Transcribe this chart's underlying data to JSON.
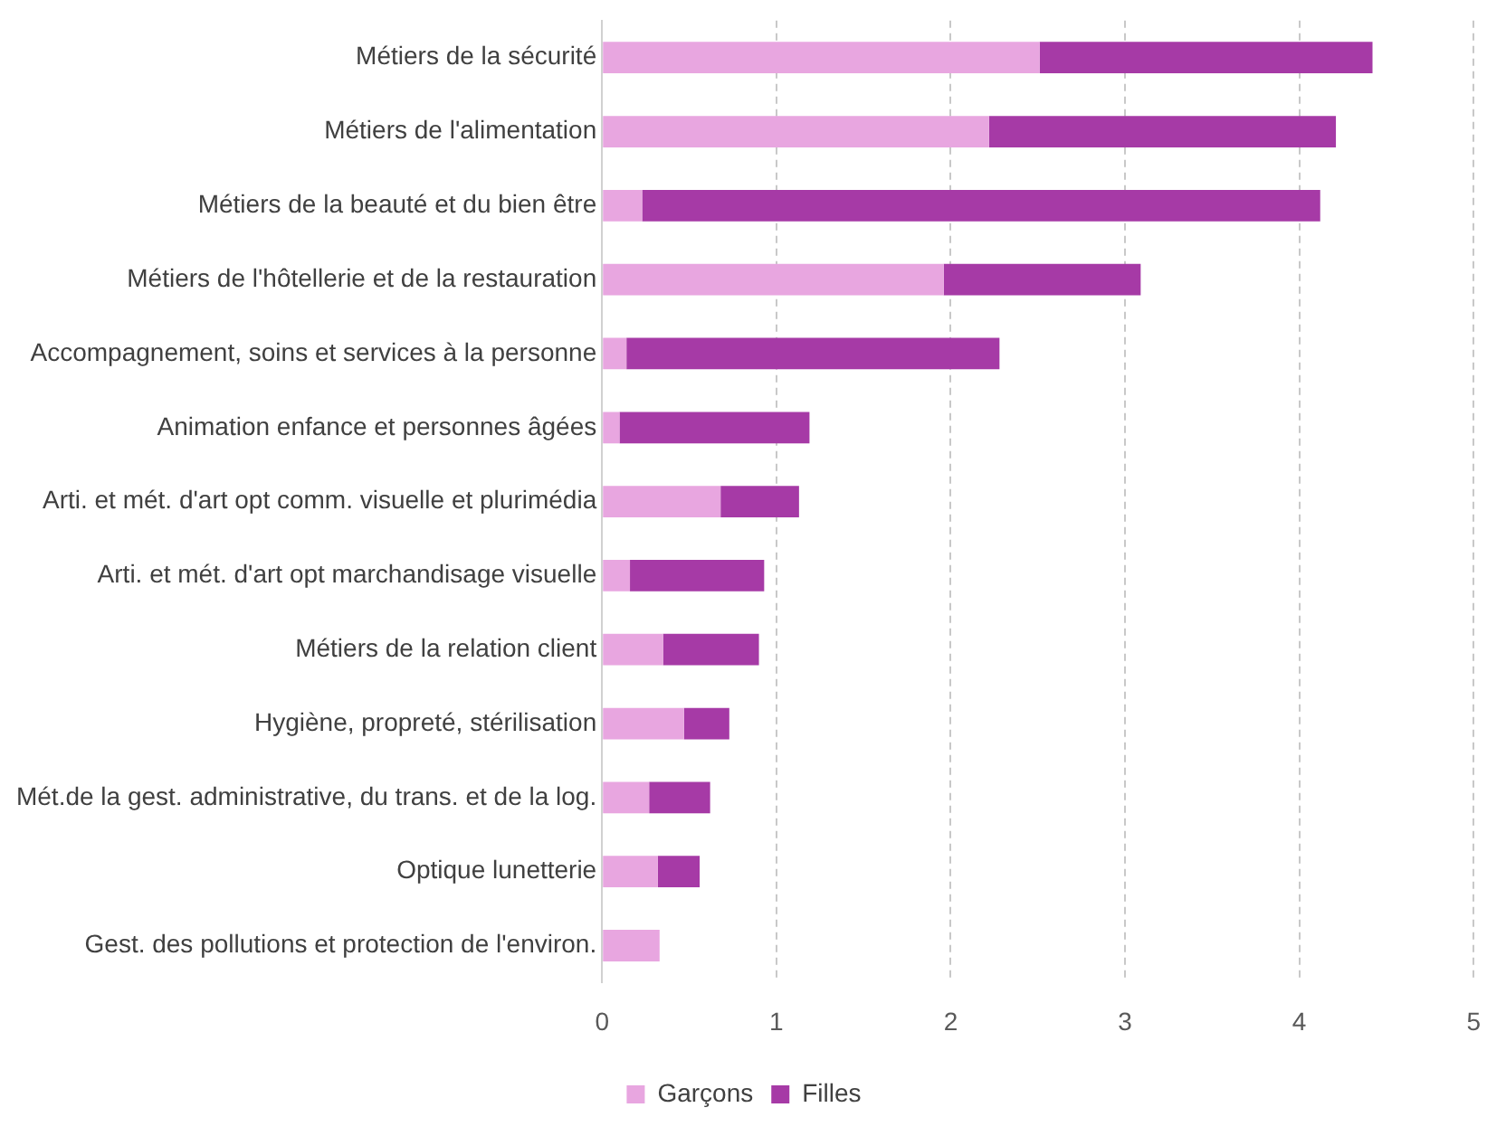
{
  "chart_data": {
    "type": "bar",
    "orientation": "horizontal",
    "stacked": true,
    "categories": [
      "Métiers de la sécurité",
      "Métiers de l'alimentation",
      "Métiers de la beauté et du bien être",
      "Métiers de l'hôtellerie et de la restauration",
      "Accompagnement, soins et services à la personne",
      "Animation enfance et personnes âgées",
      "Arti. et mét. d'art opt comm. visuelle et plurimédia",
      "Arti. et mét. d'art opt marchandisage visuelle",
      "Métiers de la relation client",
      "Hygiène, propreté, stérilisation",
      "Mét.de la gest. administrative, du trans. et de la log.",
      "Optique lunetterie",
      "Gest. des pollutions et protection de l'environ."
    ],
    "series": [
      {
        "name": "Garçons",
        "color": "#e8a6e0",
        "values": [
          2.51,
          2.22,
          0.23,
          1.96,
          0.14,
          0.1,
          0.68,
          0.16,
          0.35,
          0.47,
          0.27,
          0.32,
          0.33
        ]
      },
      {
        "name": "Filles",
        "color": "#a63aa6",
        "values": [
          1.91,
          1.99,
          3.89,
          1.13,
          2.14,
          1.09,
          0.45,
          0.77,
          0.55,
          0.26,
          0.35,
          0.24,
          0
        ]
      }
    ],
    "xlim": [
      0,
      5
    ],
    "xticks": [
      0,
      1,
      2,
      3,
      4,
      5
    ],
    "grid": "x",
    "legend": "bottom"
  }
}
